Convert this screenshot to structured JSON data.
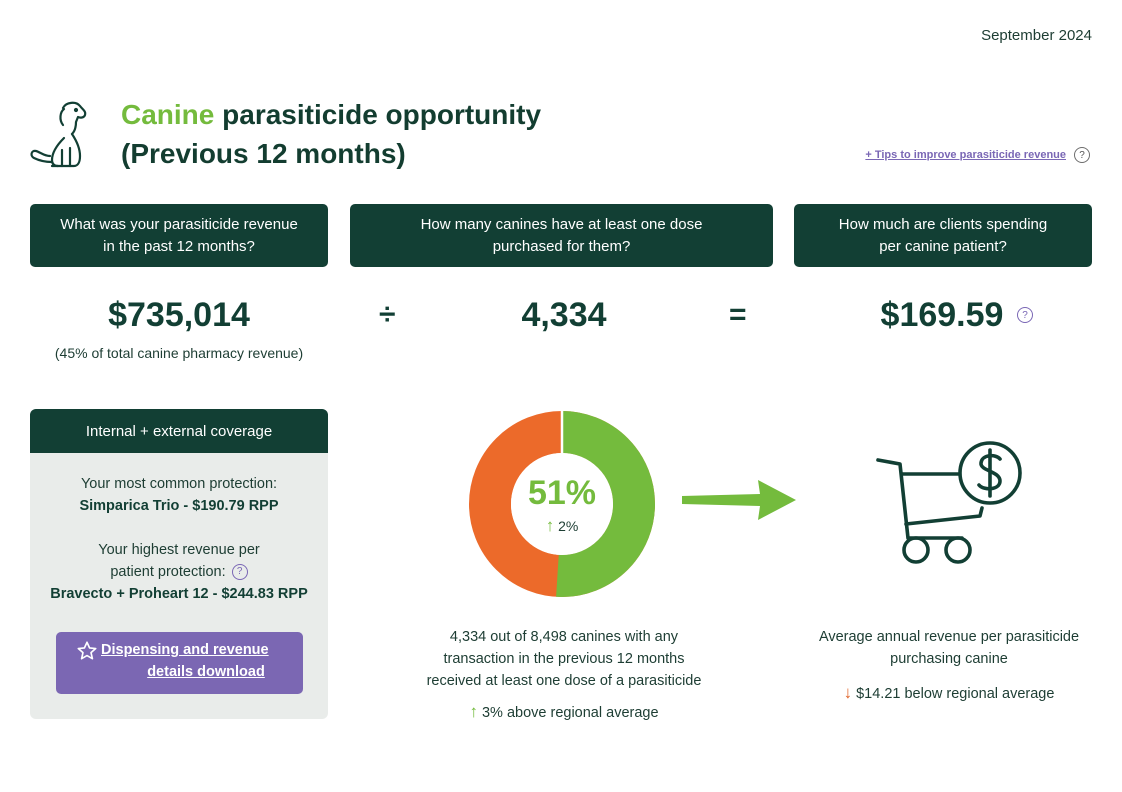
{
  "date": "September 2024",
  "title": {
    "accent": "Canine",
    "line1_rest": " parasiticide opportunity",
    "line2": "(Previous 12 months)"
  },
  "tips_link": "+ Tips to improve parasiticide revenue",
  "help_glyph": "?",
  "questions": {
    "revenue_l1": "What was your parasiticide revenue",
    "revenue_l2": "in the past 12 months?",
    "canines_l1": "How many canines have at least one dose",
    "canines_l2": "purchased for them?",
    "spend_l1": "How much are clients spending",
    "spend_l2": "per canine patient?"
  },
  "metrics": {
    "revenue": "$735,014",
    "revenue_note": "(45% of total canine pharmacy revenue)",
    "divide": "÷",
    "canines": "4,334",
    "equals": "=",
    "per_patient": "$169.59"
  },
  "coverage": {
    "header": "Internal + external coverage",
    "common_label": "Your most common protection:",
    "common_value": "Simparica Trio - $190.79 RPP",
    "highest_label_l1": "Your highest revenue per",
    "highest_label_l2": "patient protection:",
    "highest_value": "Bravecto + Proheart 12 - $244.83 RPP",
    "download_l1": "Dispensing and revenue",
    "download_l2": "details download"
  },
  "donut": {
    "percent": "51%",
    "percent_value": 51,
    "change": "2%",
    "color_filled": "#74bb3d",
    "color_rest": "#ec6a2a"
  },
  "canine_caption": {
    "l1": "4,334 out of 8,498 canines with any",
    "l2": "transaction in the previous 12 months",
    "l3": "received at least one dose of a parasiticide",
    "regional": "3% above regional average"
  },
  "spend_caption": {
    "l1": "Average annual revenue per parasiticide",
    "l2": "purchasing canine",
    "regional": "$14.21 below regional average"
  },
  "icons": [
    "dog-icon",
    "help-icon",
    "star-icon",
    "arrow-up-icon",
    "arrow-down-icon",
    "right-arrow-icon",
    "shopping-cart-dollar-icon"
  ]
}
